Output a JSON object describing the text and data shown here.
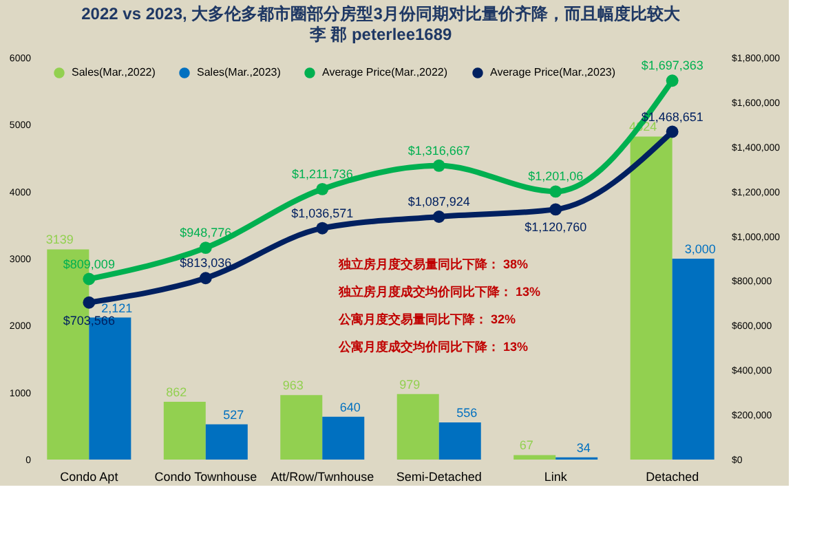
{
  "chart_data": {
    "type": "bar",
    "title": "2022 vs 2023, 大多伦多都市圈部分房型3月份同期对比量价齐降，而且幅度比较大",
    "subtitle": "李 郡 peterlee1689",
    "categories": [
      "Condo Apt",
      "Condo Townhouse",
      "Att/Row/Twnhouse",
      "Semi-Detached",
      "Link",
      "Detached"
    ],
    "series": [
      {
        "name": "Sales(Mar.,2022)",
        "color": "#92d050",
        "values": [
          3139,
          862,
          963,
          979,
          67,
          4824
        ],
        "value_labels": [
          "3139",
          "862",
          "963",
          "979",
          "67",
          "4824"
        ]
      },
      {
        "name": "Sales(Mar.,2023)",
        "color": "#0070c0",
        "values": [
          2121,
          527,
          640,
          556,
          34,
          3000
        ],
        "value_labels": [
          "2,121",
          "527",
          "640",
          "556",
          "34",
          "3,000"
        ]
      },
      {
        "name": "Average Price(Mar.,2022)",
        "type": "line",
        "axis": "y2",
        "marker": "circle",
        "color": "#00b050",
        "values": [
          809009,
          948776,
          1211736,
          1316667,
          1201060,
          1697363
        ],
        "value_labels": [
          "$809,009",
          "$948,776",
          "$1,211,736",
          "$1,316,667",
          "$1,201,06",
          "$1,697,363"
        ]
      },
      {
        "name": "Average Price(Mar.,2023)",
        "type": "line",
        "axis": "y2",
        "marker": "circle",
        "color": "#002060",
        "values": [
          703566,
          813036,
          1036571,
          1087924,
          1120760,
          1468651
        ],
        "value_labels": [
          "$703,566",
          "$813,036",
          "$1,036,571",
          "$1,087,924",
          "$1,120,760",
          "$1,468,651"
        ]
      }
    ],
    "ylim": [
      0,
      6000
    ],
    "yticks": [
      0,
      1000,
      2000,
      3000,
      4000,
      5000,
      6000
    ],
    "y2lim": [
      0,
      1800000
    ],
    "y2ticks": [
      {
        "value": 0,
        "label": "$0"
      },
      {
        "value": 200000,
        "label": "$200,000"
      },
      {
        "value": 400000,
        "label": "$400,000"
      },
      {
        "value": 600000,
        "label": "$600,000"
      },
      {
        "value": 800000,
        "label": "$800,000"
      },
      {
        "value": 1000000,
        "label": "$1,000,000"
      },
      {
        "value": 1200000,
        "label": "$1,200,000"
      },
      {
        "value": 1400000,
        "label": "$1,400,000"
      },
      {
        "value": 1600000,
        "label": "$1,600,000"
      },
      {
        "value": 1800000,
        "label": "$1,800,000"
      }
    ],
    "annotations": [
      "独立房月度交易量同比下降：  38%",
      "独立房月度成交均价同比下降：  13%",
      "公寓月度交易量同比下降：  32%",
      "公寓月度成交均价同比下降：  13%"
    ],
    "grid": false,
    "legend": "top"
  }
}
